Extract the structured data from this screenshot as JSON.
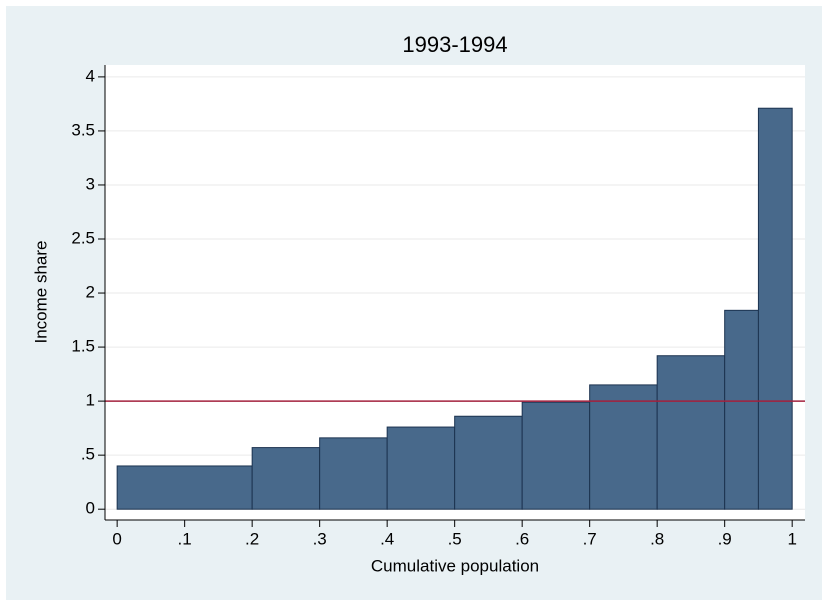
{
  "chart_data": {
    "type": "histogram",
    "title": "1993-1994",
    "x_label": "Cumulative population",
    "y_label": "Income share",
    "bins": [
      0,
      0.2,
      0.3,
      0.4,
      0.5,
      0.6,
      0.7,
      0.8,
      0.9,
      0.95,
      1
    ],
    "values": [
      0.4,
      0.57,
      0.66,
      0.76,
      0.86,
      0.99,
      1.15,
      1.42,
      1.84,
      3.71
    ],
    "color": "#48698b",
    "edge_color": "#1c3350",
    "reference_line": 1,
    "reference_color": "#a3203d",
    "xlim": [
      -0.018,
      1.019
    ],
    "xticks": [
      0,
      {
        "value": 0.1,
        "label": ".1"
      },
      {
        "value": 0.2,
        "label": ".2"
      },
      {
        "value": 0.3,
        "label": ".3"
      },
      {
        "value": 0.4,
        "label": ".4"
      },
      {
        "value": 0.5,
        "label": ".5"
      },
      {
        "value": 0.6,
        "label": ".6"
      },
      {
        "value": 0.7,
        "label": ".7"
      },
      {
        "value": 0.8,
        "label": ".8"
      },
      {
        "value": 0.9,
        "label": ".9"
      },
      1
    ],
    "ylim": [
      -0.1,
      4.11
    ],
    "yticks": [
      0,
      {
        "value": 0.5,
        "label": ".5"
      },
      1,
      1.5,
      2,
      2.5,
      3,
      3.5,
      4
    ],
    "grid": true
  }
}
